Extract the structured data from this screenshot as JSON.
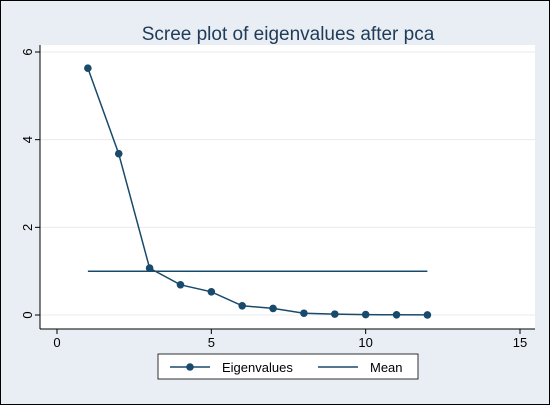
{
  "chart_data": {
    "type": "line",
    "title": "Scree plot of eigenvalues after pca",
    "xlabel": "",
    "ylabel": "",
    "xlim": [
      0,
      15
    ],
    "ylim": [
      0,
      6
    ],
    "xticks": [
      0,
      5,
      10,
      15
    ],
    "yticks": [
      0,
      2,
      4,
      6
    ],
    "grid": "horizontal",
    "legend_position": "bottom",
    "colors": {
      "outer_background": "#e8eef3",
      "plot_background": "#ffffff",
      "series": "#1a4a6b",
      "grid": "#e5ecf1",
      "text": "#000000",
      "title": "#1f3b59"
    },
    "series": [
      {
        "name": "Eigenvalues",
        "style": "line-with-markers",
        "x": [
          1,
          2,
          3,
          4,
          5,
          6,
          7,
          8,
          9,
          10,
          11,
          12
        ],
        "y": [
          5.63,
          3.68,
          1.07,
          0.69,
          0.53,
          0.21,
          0.15,
          0.04,
          0.02,
          0.01,
          0.005,
          0.002
        ]
      },
      {
        "name": "Mean",
        "style": "line",
        "x": [
          1,
          12
        ],
        "y": [
          1.0,
          1.0
        ]
      }
    ]
  }
}
